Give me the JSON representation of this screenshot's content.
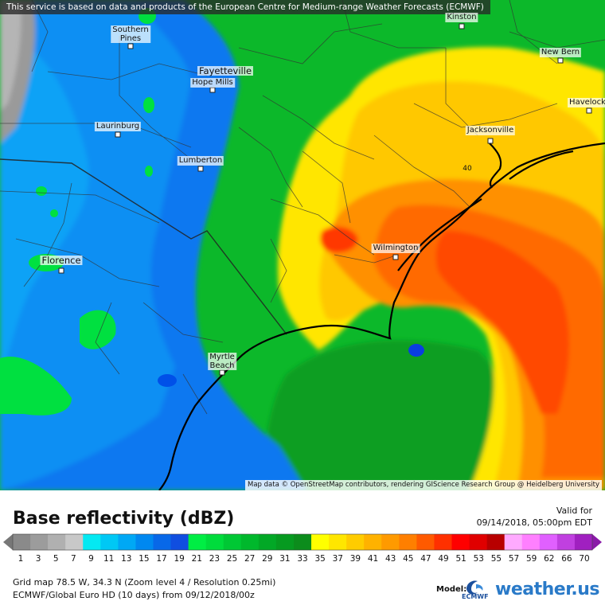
{
  "map": {
    "attribution_top": "This service is based on data and products of the European Centre for Medium-range Weather Forecasts (ECMWF)",
    "attribution_bottom": "Map data © OpenStreetMap contributors, rendering GIScience Research Group @ Heidelberg University",
    "cities": [
      {
        "name": "Kinston",
        "key": "kinston"
      },
      {
        "name": "Southern\nPines",
        "key": "southern-pines"
      },
      {
        "name": "Fayetteville",
        "key": "fayetteville"
      },
      {
        "name": "Hope Mills",
        "key": "hope-mills"
      },
      {
        "name": "New Bern",
        "key": "new-bern"
      },
      {
        "name": "Havelock",
        "key": "havelock"
      },
      {
        "name": "Laurinburg",
        "key": "laurinburg"
      },
      {
        "name": "Jacksonville",
        "key": "jacksonville"
      },
      {
        "name": "Lumberton",
        "key": "lumberton"
      },
      {
        "name": "Wilmington",
        "key": "wilmington"
      },
      {
        "name": "Florence",
        "key": "florence"
      },
      {
        "name": "Myrtle\nBeach",
        "key": "myrtle-beach"
      }
    ],
    "highway_label": "40"
  },
  "legend": {
    "title": "Base reflectivity (dBZ)",
    "valid_label": "Valid for",
    "valid_time": "09/14/2018, 05:00pm EDT",
    "ticks": [
      "1",
      "3",
      "5",
      "7",
      "9",
      "11",
      "13",
      "15",
      "17",
      "19",
      "21",
      "23",
      "25",
      "27",
      "29",
      "31",
      "33",
      "35",
      "37",
      "39",
      "41",
      "43",
      "45",
      "47",
      "49",
      "51",
      "53",
      "55",
      "57",
      "59",
      "62",
      "66",
      "70"
    ],
    "colors": [
      "#8a8a8a",
      "#9c9c9c",
      "#b0b0b0",
      "#c8c8c8",
      "#04e9f2",
      "#00c8f5",
      "#00a8f5",
      "#0088f0",
      "#0868e8",
      "#104ee0",
      "#00ee44",
      "#00dc3c",
      "#00c834",
      "#00b82c",
      "#02a826",
      "#069a20",
      "#0c8c1c",
      "#ffff00",
      "#ffe600",
      "#ffcc00",
      "#ffb200",
      "#ff9a00",
      "#ff7f00",
      "#ff5a00",
      "#ff3000",
      "#ff0000",
      "#e00000",
      "#b80000",
      "#ffaaff",
      "#ff80ff",
      "#e060ff",
      "#c040e0",
      "#a020c0"
    ],
    "info_line1": "Grid map 78.5 W, 34.3 N (Zoom level 4 / Resolution 0.25mi)",
    "info_line2": "ECMWF/Global Euro HD (10 days) from 09/12/2018/00z",
    "model_label": "Model:",
    "ecmwf_label": "ECMWF",
    "brand": "weather.us"
  }
}
